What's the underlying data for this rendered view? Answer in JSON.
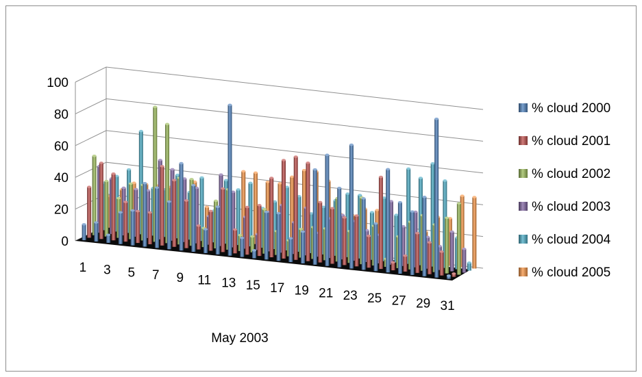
{
  "chart_data": {
    "type": "bar",
    "subtype": "3d-clustered-column",
    "title": "",
    "xlabel": "May  2003",
    "ylabel": "",
    "ylim": [
      0,
      100
    ],
    "yticks": [
      "0",
      "20",
      "40",
      "60",
      "80",
      "100"
    ],
    "categories": [
      "1",
      "2",
      "3",
      "4",
      "5",
      "6",
      "7",
      "8",
      "9",
      "10",
      "11",
      "12",
      "13",
      "14",
      "15",
      "16",
      "17",
      "18",
      "19",
      "20",
      "21",
      "22",
      "23",
      "24",
      "25",
      "26",
      "27",
      "28",
      "29",
      "30",
      "31"
    ],
    "xtick_labels": [
      "1",
      "3",
      "5",
      "7",
      "9",
      "11",
      "13",
      "15",
      "17",
      "19",
      "21",
      "23",
      "25",
      "27",
      "29",
      "31"
    ],
    "legend_position": "right",
    "grid": true,
    "series": [
      {
        "name": "% cloud 2000",
        "color": "#4f81bd",
        "values": [
          10,
          12,
          5,
          20,
          22,
          40,
          38,
          30,
          55,
          42,
          15,
          30,
          95,
          12,
          5,
          30,
          30,
          15,
          20,
          60,
          70,
          50,
          78,
          45,
          30,
          65,
          45,
          40,
          50,
          100,
          2
        ]
      },
      {
        "name": "% cloud 2001",
        "color": "#c0504d",
        "values": [
          32,
          48,
          42,
          25,
          20,
          20,
          50,
          42,
          30,
          15,
          25,
          40,
          15,
          30,
          32,
          50,
          62,
          65,
          62,
          38,
          35,
          30,
          32,
          20,
          58,
          5,
          10,
          25,
          20,
          15,
          2
        ]
      },
      {
        "name": "% cloud 2002",
        "color": "#9bbb59",
        "values": [
          50,
          35,
          25,
          35,
          35,
          85,
          75,
          42,
          42,
          12,
          30,
          38,
          10,
          10,
          28,
          15,
          10,
          18,
          20,
          20,
          40,
          20,
          42,
          25,
          5,
          20,
          30,
          35,
          30,
          35,
          45
        ]
      },
      {
        "name": "% cloud 2003",
        "color": "#8064a2",
        "values": [
          42,
          35,
          30,
          30,
          30,
          50,
          45,
          40,
          35,
          18,
          45,
          35,
          20,
          10,
          25,
          30,
          20,
          30,
          15,
          25,
          28,
          25,
          20,
          18,
          40,
          25,
          35,
          20,
          15,
          25,
          15
        ]
      },
      {
        "name": "% cloud 2004",
        "color": "#4bacc6",
        "values": [
          30,
          35,
          40,
          65,
          30,
          30,
          40,
          30,
          40,
          20,
          40,
          35,
          40,
          25,
          30,
          40,
          35,
          25,
          30,
          35,
          40,
          40,
          30,
          40,
          30,
          60,
          55,
          65,
          55,
          20,
          5
        ]
      },
      {
        "name": "% cloud 2005",
        "color": "#f79646",
        "values": [
          20,
          25,
          30,
          30,
          30,
          30,
          28,
          35,
          20,
          15,
          25,
          45,
          45,
          40,
          40,
          45,
          50,
          50,
          45,
          25,
          25,
          30,
          30,
          25,
          15,
          10,
          20,
          30,
          30,
          45,
          45
        ]
      }
    ]
  }
}
